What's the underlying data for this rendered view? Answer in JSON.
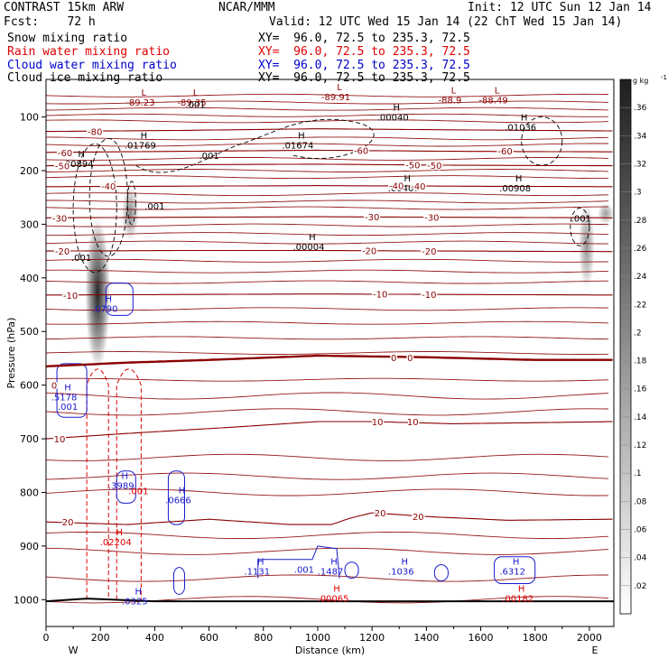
{
  "header": {
    "model": "CONTRAST 15km ARW",
    "org": "NCAR/MMM",
    "init": "Init: 12 UTC Sun 12 Jan 14",
    "fcst": "Fcst:    72 h",
    "valid": "Valid: 12 UTC Wed 15 Jan 14 (22 ChT Wed 15 Jan 14)",
    "fields": [
      {
        "name": "Snow mixing ratio",
        "xy": "XY=  96.0, 72.5 to 235.3, 72.5",
        "color": "#000000"
      },
      {
        "name": "Rain water mixing ratio",
        "xy": "XY=  96.0, 72.5 to 235.3, 72.5",
        "color": "#e00000"
      },
      {
        "name": "Cloud water mixing ratio",
        "xy": "XY=  96.0, 72.5 to 235.3, 72.5",
        "color": "#0000cc"
      },
      {
        "name": "Cloud ice mixing ratio",
        "xy": "XY=  96.0, 72.5 to 235.3, 72.5",
        "color": "#000000"
      }
    ]
  },
  "colors": {
    "isotherm": "#8b0000",
    "rain": "#e00000",
    "cloud_water": "#1a1acc",
    "cloud_ice": "#000000",
    "snow_shade": "#333333"
  },
  "chart_data": {
    "type": "heatmap",
    "xlabel": "Distance (km)",
    "ylabel": "Pressure (hPa)",
    "xlim": [
      0,
      2090
    ],
    "ylim": [
      1050,
      30
    ],
    "x_ticks": [
      0,
      200,
      400,
      600,
      800,
      1000,
      1200,
      1400,
      1600,
      1800,
      2000
    ],
    "y_ticks": [
      100,
      200,
      300,
      400,
      500,
      600,
      700,
      800,
      900,
      1000
    ],
    "west_label": "W",
    "east_label": "E",
    "colorbar": {
      "units": "g kg",
      "units_exp": "-1",
      "values": [
        0.02,
        0.04,
        0.06,
        0.08,
        0.1,
        0.12,
        0.14,
        0.16,
        0.18,
        0.2,
        0.22,
        0.24,
        0.26,
        0.28,
        0.3,
        0.32,
        0.34,
        0.36
      ],
      "labels": [
        ".02",
        ".04",
        ".06",
        ".08",
        ".1",
        ".12",
        ".14",
        ".16",
        ".18",
        ".2",
        ".22",
        ".24",
        ".26",
        ".28",
        ".3",
        ".32",
        ".34",
        ".36"
      ]
    },
    "isotherms": [
      {
        "t": -80,
        "p": [
          [
            0,
            127
          ],
          [
            500,
            125
          ],
          [
            1000,
            122
          ],
          [
            1500,
            124
          ],
          [
            2090,
            126
          ]
        ],
        "labels": [
          {
            "x": 180,
            "p": 127,
            "text": "-80"
          }
        ]
      },
      {
        "t": -60,
        "p": [
          [
            0,
            166
          ],
          [
            500,
            164
          ],
          [
            1000,
            162
          ],
          [
            1500,
            164
          ],
          [
            2090,
            165
          ]
        ],
        "labels": [
          {
            "x": 70,
            "p": 166,
            "text": "-60"
          },
          {
            "x": 1160,
            "p": 162,
            "text": "-60"
          },
          {
            "x": 1690,
            "p": 163,
            "text": "-60"
          }
        ]
      },
      {
        "t": -50,
        "p": [
          [
            0,
            191
          ],
          [
            500,
            189
          ],
          [
            1000,
            188
          ],
          [
            1500,
            190
          ],
          [
            2090,
            191
          ]
        ],
        "labels": [
          {
            "x": 60,
            "p": 191,
            "text": "-50"
          },
          {
            "x": 1350,
            "p": 189,
            "text": "-50"
          },
          {
            "x": 1430,
            "p": 190,
            "text": "-50"
          }
        ]
      },
      {
        "t": -40,
        "p": [
          [
            0,
            230
          ],
          [
            500,
            229
          ],
          [
            1000,
            228
          ],
          [
            1500,
            229
          ],
          [
            2090,
            230
          ]
        ],
        "labels": [
          {
            "x": 230,
            "p": 229,
            "text": "-40"
          },
          {
            "x": 1290,
            "p": 228,
            "text": "-40"
          },
          {
            "x": 1370,
            "p": 229,
            "text": "-40"
          }
        ]
      },
      {
        "t": -30,
        "p": [
          [
            0,
            288
          ],
          [
            500,
            287
          ],
          [
            1000,
            286
          ],
          [
            1500,
            287
          ],
          [
            2090,
            288
          ]
        ],
        "labels": [
          {
            "x": 50,
            "p": 288,
            "text": "-30"
          },
          {
            "x": 1200,
            "p": 286,
            "text": "-30"
          },
          {
            "x": 1420,
            "p": 287,
            "text": "-30"
          }
        ]
      },
      {
        "t": -20,
        "p": [
          [
            0,
            350
          ],
          [
            500,
            349
          ],
          [
            1000,
            349
          ],
          [
            1500,
            350
          ],
          [
            2090,
            351
          ]
        ],
        "labels": [
          {
            "x": 60,
            "p": 350,
            "text": "-20"
          },
          {
            "x": 1190,
            "p": 349,
            "text": "-20"
          },
          {
            "x": 1410,
            "p": 350,
            "text": "-20"
          }
        ]
      },
      {
        "t": -10,
        "p": [
          [
            0,
            432
          ],
          [
            500,
            431
          ],
          [
            1000,
            430
          ],
          [
            1500,
            431
          ],
          [
            2090,
            432
          ]
        ],
        "labels": [
          {
            "x": 90,
            "p": 432,
            "text": "-10"
          },
          {
            "x": 1230,
            "p": 430,
            "text": "-10"
          },
          {
            "x": 1410,
            "p": 431,
            "text": "-10"
          }
        ]
      },
      {
        "t": 0,
        "p": [
          [
            0,
            565
          ],
          [
            300,
            558
          ],
          [
            600,
            553
          ],
          [
            1000,
            545
          ],
          [
            1400,
            548
          ],
          [
            1800,
            553
          ],
          [
            2090,
            553
          ]
        ],
        "labels": [
          {
            "x": 30,
            "p": 600,
            "text": "0"
          },
          {
            "x": 1280,
            "p": 548,
            "text": "0"
          },
          {
            "x": 1340,
            "p": 548,
            "text": "0"
          }
        ],
        "bold": true
      },
      {
        "t": 10,
        "p": [
          [
            0,
            700
          ],
          [
            300,
            690
          ],
          [
            700,
            678
          ],
          [
            1000,
            668
          ],
          [
            1200,
            668
          ],
          [
            1500,
            672
          ],
          [
            1800,
            670
          ],
          [
            2090,
            668
          ]
        ],
        "labels": [
          {
            "x": 50,
            "p": 700,
            "text": "10"
          },
          {
            "x": 1220,
            "p": 668,
            "text": "10"
          },
          {
            "x": 1350,
            "p": 668,
            "text": "10"
          }
        ]
      },
      {
        "t": 20,
        "p": [
          [
            0,
            855
          ],
          [
            300,
            860
          ],
          [
            600,
            850
          ],
          [
            900,
            860
          ],
          [
            1050,
            860
          ],
          [
            1120,
            848
          ],
          [
            1200,
            838
          ],
          [
            1400,
            845
          ],
          [
            1700,
            852
          ],
          [
            2090,
            850
          ]
        ],
        "labels": [
          {
            "x": 80,
            "p": 855,
            "text": "20"
          },
          {
            "x": 1230,
            "p": 838,
            "text": "20"
          },
          {
            "x": 1370,
            "p": 845,
            "text": "20"
          }
        ]
      }
    ],
    "theta_lines_p": [
      60,
      73,
      85,
      97,
      108,
      140,
      152,
      178,
      200,
      212,
      244,
      258,
      270,
      302,
      318,
      334,
      368,
      388,
      408,
      458,
      484,
      512,
      540,
      590,
      620,
      650,
      735,
      770,
      800,
      880,
      910,
      960,
      1000
    ],
    "maxima": [
      {
        "type": "L",
        "x": 360,
        "p": 60,
        "value": "-89.23",
        "color": "#8b0000"
      },
      {
        "type": "L",
        "x": 550,
        "p": 60,
        "value": "-89.35",
        "color": "#8b0000"
      },
      {
        "type": "L",
        "x": 1080,
        "p": 50,
        "value": "-89.91",
        "color": "#8b0000"
      },
      {
        "type": "L",
        "x": 1500,
        "p": 56,
        "value": "-88.9",
        "color": "#8b0000"
      },
      {
        "type": "L",
        "x": 1660,
        "p": 56,
        "value": "-88.49",
        "color": "#8b0000"
      },
      {
        "type": "H",
        "x": 1290,
        "p": 88,
        "value": ".00040",
        "color": "#000000"
      },
      {
        "type": "H",
        "x": 1760,
        "p": 107,
        "value": ".01036",
        "color": "#000000"
      },
      {
        "type": "H",
        "x": 360,
        "p": 140,
        "value": ".01769",
        "color": "#000000"
      },
      {
        "type": "H",
        "x": 940,
        "p": 140,
        "value": ".01674",
        "color": "#000000"
      },
      {
        "type": "H",
        "x": 130,
        "p": 175,
        "value": ".00894",
        "color": "#000000"
      },
      {
        "type": "H",
        "x": 1330,
        "p": 220,
        "value": ".00407",
        "color": "#000000"
      },
      {
        "type": "H",
        "x": 1740,
        "p": 220,
        "value": ".00908",
        "color": "#000000"
      },
      {
        "type": "H",
        "x": 980,
        "p": 330,
        "value": ".00004",
        "color": "#000000"
      },
      {
        "type": "H",
        "x": 230,
        "p": 445,
        "value": ".0790",
        "color": "#1a1acc"
      },
      {
        "type": "H",
        "x": 80,
        "p": 610,
        "value": ".5178",
        "color": "#1a1acc"
      },
      {
        "type": "H",
        "x": 290,
        "p": 775,
        "value": ".3989",
        "color": "#1a1acc"
      },
      {
        "type": "H",
        "x": 500,
        "p": 802,
        "value": ".0666",
        "color": "#1a1acc"
      },
      {
        "type": "H",
        "x": 790,
        "p": 935,
        "value": ".1131",
        "color": "#1a1acc"
      },
      {
        "type": "H",
        "x": 1060,
        "p": 935,
        "value": ".1487",
        "color": "#1a1acc"
      },
      {
        "type": "H",
        "x": 1320,
        "p": 935,
        "value": ".1036",
        "color": "#1a1acc"
      },
      {
        "type": "H",
        "x": 1730,
        "p": 935,
        "value": ".6312",
        "color": "#1a1acc"
      },
      {
        "type": "H",
        "x": 340,
        "p": 990,
        "value": ".0325",
        "color": "#1a1acc"
      },
      {
        "type": "H",
        "x": 270,
        "p": 880,
        "value": ".02204",
        "color": "#e00000"
      },
      {
        "type": "H",
        "x": 1070,
        "p": 985,
        "value": ".00065",
        "color": "#e00000"
      },
      {
        "type": "H",
        "x": 1750,
        "p": 985,
        "value": ".00182",
        "color": "#e00000"
      }
    ],
    "contour_labels": [
      {
        "x": 550,
        "p": 83,
        "text": ".001",
        "color": "#000000"
      },
      {
        "x": 600,
        "p": 178,
        "text": ".001",
        "color": "#000000"
      },
      {
        "x": 400,
        "p": 272,
        "text": ".001",
        "color": "#000000"
      },
      {
        "x": 130,
        "p": 368,
        "text": ".001",
        "color": "#000000"
      },
      {
        "x": 1970,
        "p": 295,
        "text": ".001",
        "color": "#000000"
      },
      {
        "x": 80,
        "p": 646,
        "text": ".001",
        "color": "#1a1acc"
      },
      {
        "x": 340,
        "p": 803,
        "text": ".001",
        "color": "#e00000"
      },
      {
        "x": 950,
        "p": 950,
        "text": ".001",
        "color": "#1a1acc"
      }
    ],
    "snow_columns": [
      {
        "x": 190,
        "p_top": 290,
        "p_bottom": 570,
        "peak": 0.34
      },
      {
        "x": 310,
        "p_top": 230,
        "p_bottom": 330,
        "peak": 0.12
      },
      {
        "x": 1990,
        "p_top": 260,
        "p_bottom": 420,
        "peak": 0.1
      },
      {
        "x": 2060,
        "p_top": 260,
        "p_bottom": 300,
        "peak": 0.08
      }
    ]
  }
}
